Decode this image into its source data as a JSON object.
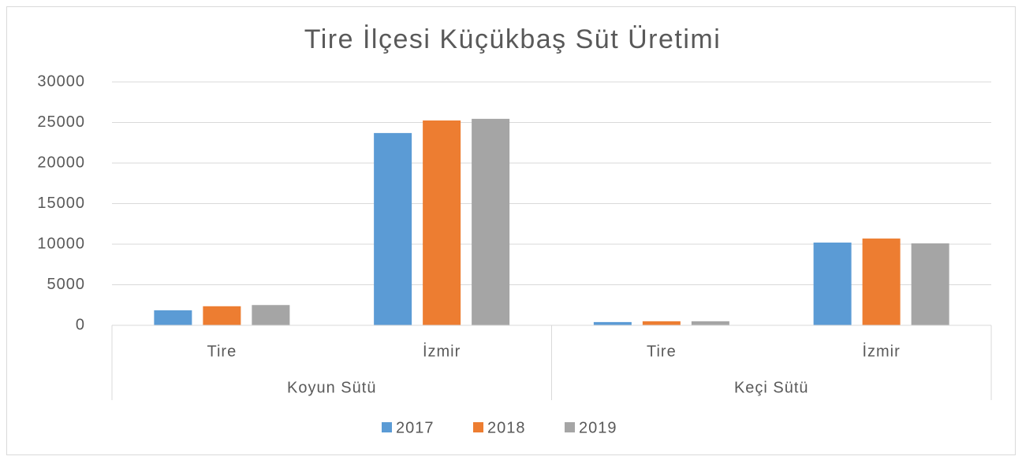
{
  "chart_data": {
    "type": "bar",
    "title": "Tire İlçesi Küçükbaş Süt Üretimi",
    "groups": [
      {
        "label": "Koyun Sütü",
        "categories": [
          "Tire",
          "İzmir"
        ]
      },
      {
        "label": "Keçi Sütü",
        "categories": [
          "Tire",
          "İzmir"
        ]
      }
    ],
    "series": [
      {
        "name": "2017",
        "color": "#5b9bd5",
        "values": [
          1850,
          23700,
          400,
          10200
        ]
      },
      {
        "name": "2018",
        "color": "#ed7d31",
        "values": [
          2350,
          25250,
          500,
          10700
        ]
      },
      {
        "name": "2019",
        "color": "#a5a5a5",
        "values": [
          2500,
          25450,
          500,
          10100
        ]
      }
    ],
    "ylim": [
      0,
      30000
    ],
    "yticks": [
      0,
      5000,
      10000,
      15000,
      20000,
      25000,
      30000
    ],
    "grid": true,
    "legend": "bottom"
  }
}
